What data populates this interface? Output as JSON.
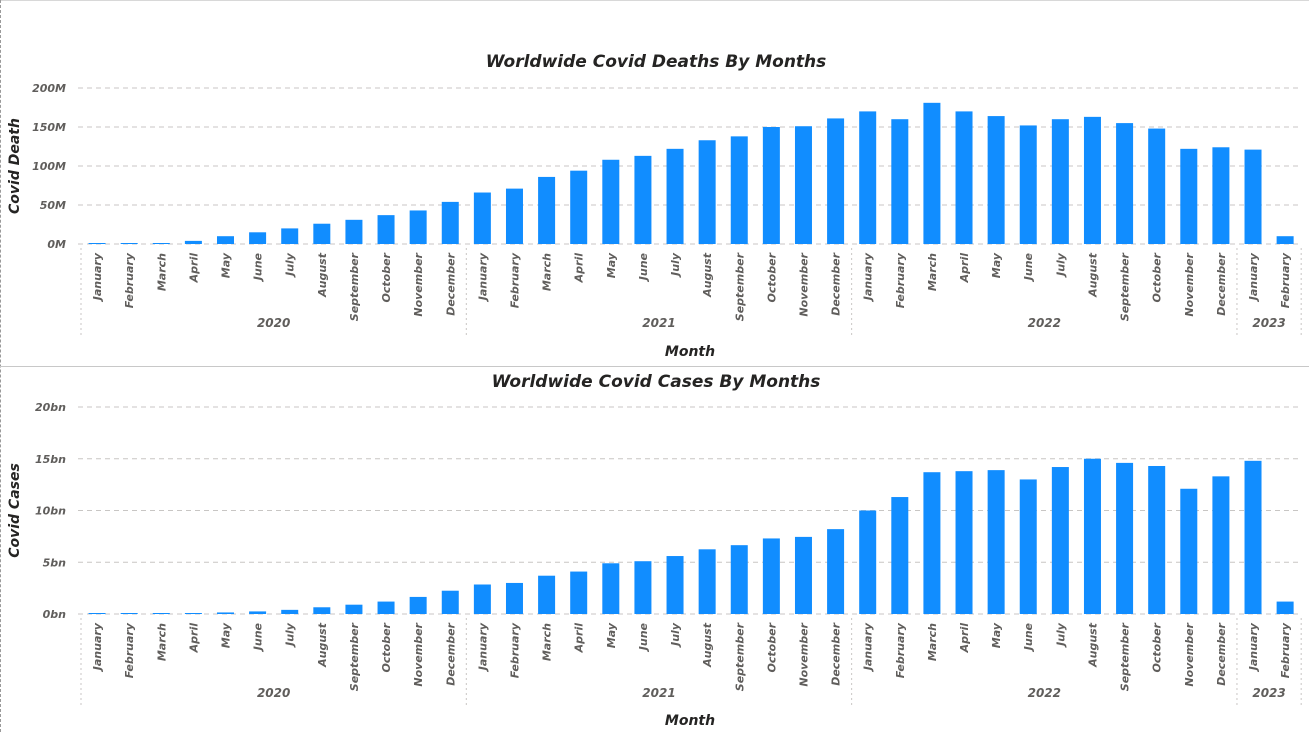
{
  "bar_color": "#118dff",
  "chart_data": [
    {
      "type": "bar",
      "title": "Worldwide Covid Deaths By Months",
      "xlabel": "Month",
      "ylabel": "Covid Death",
      "ylim": [
        0,
        200000000
      ],
      "y_ticks": [
        "0M",
        "50M",
        "100M",
        "150M",
        "200M"
      ],
      "grid": true,
      "categories": [
        "January",
        "February",
        "March",
        "April",
        "May",
        "June",
        "July",
        "August",
        "September",
        "October",
        "November",
        "December",
        "January",
        "February",
        "March",
        "April",
        "May",
        "June",
        "July",
        "August",
        "September",
        "October",
        "November",
        "December",
        "January",
        "February",
        "March",
        "April",
        "May",
        "June",
        "July",
        "August",
        "September",
        "October",
        "November",
        "December",
        "January",
        "February"
      ],
      "years": [
        {
          "label": "2020",
          "count": 12
        },
        {
          "label": "2021",
          "count": 12
        },
        {
          "label": "2022",
          "count": 12
        },
        {
          "label": "2023",
          "count": 2
        }
      ],
      "series": [
        {
          "values": [
            1000000,
            1000000,
            1000000,
            4000000,
            10000000,
            15000000,
            20000000,
            26000000,
            31000000,
            37000000,
            43000000,
            54000000,
            66000000,
            71000000,
            86000000,
            94000000,
            108000000,
            113000000,
            122000000,
            133000000,
            138000000,
            150000000,
            151000000,
            161000000,
            170000000,
            160000000,
            181000000,
            170000000,
            164000000,
            152000000,
            160000000,
            163000000,
            155000000,
            148000000,
            122000000,
            124000000,
            121000000,
            10000000
          ]
        }
      ]
    },
    {
      "type": "bar",
      "title": "Worldwide Covid Cases By Months",
      "xlabel": "Month",
      "ylabel": "Covid Cases",
      "ylim": [
        0,
        20000000000
      ],
      "y_ticks": [
        "0bn",
        "5bn",
        "10bn",
        "15bn",
        "20bn"
      ],
      "grid": true,
      "categories": [
        "January",
        "February",
        "March",
        "April",
        "May",
        "June",
        "July",
        "August",
        "September",
        "October",
        "November",
        "December",
        "January",
        "February",
        "March",
        "April",
        "May",
        "June",
        "July",
        "August",
        "September",
        "October",
        "November",
        "December",
        "January",
        "February",
        "March",
        "April",
        "May",
        "June",
        "July",
        "August",
        "September",
        "October",
        "November",
        "December",
        "January",
        "February"
      ],
      "years": [
        {
          "label": "2020",
          "count": 12
        },
        {
          "label": "2021",
          "count": 12
        },
        {
          "label": "2022",
          "count": 12
        },
        {
          "label": "2023",
          "count": 2
        }
      ],
      "series": [
        {
          "values": [
            50000000,
            60000000,
            70000000,
            80000000,
            150000000,
            250000000,
            400000000,
            650000000,
            900000000,
            1200000000,
            1650000000,
            2250000000,
            2850000000,
            3000000000,
            3700000000,
            4100000000,
            4900000000,
            5100000000,
            5600000000,
            6250000000,
            6650000000,
            7300000000,
            7450000000,
            8200000000,
            10000000000,
            11300000000,
            13700000000,
            13800000000,
            13900000000,
            13000000000,
            14200000000,
            15000000000,
            14600000000,
            14300000000,
            12100000000,
            13300000000,
            14800000000,
            1200000000
          ]
        }
      ]
    }
  ]
}
